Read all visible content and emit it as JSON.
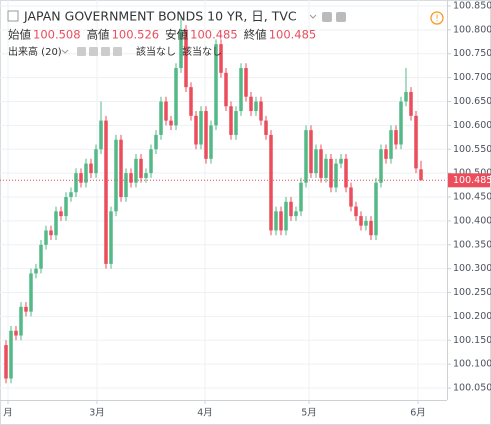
{
  "header": {
    "title": "JAPAN GOVERNMENT BONDS 10 YR, 日, TVC",
    "ohlc": [
      {
        "label": "始値",
        "value": "100.508"
      },
      {
        "label": "高値",
        "value": "100.526"
      },
      {
        "label": "安値",
        "value": "100.485"
      },
      {
        "label": "終値",
        "value": "100.485"
      }
    ],
    "volume": "出来高 (20)",
    "volume_values": [
      "該当なし",
      "該当なし"
    ]
  },
  "chart_data": {
    "type": "candlestick",
    "up_color": "#53b987",
    "down_color": "#eb4d5c",
    "grid": true,
    "ylim": [
      100.025,
      100.8625
    ],
    "yticks": [
      {
        "value": 100.05,
        "label": "100.050"
      },
      {
        "value": 100.1,
        "label": "100.100"
      },
      {
        "value": 100.15,
        "label": "100.150"
      },
      {
        "value": 100.2,
        "label": "100.200"
      },
      {
        "value": 100.25,
        "label": "100.250"
      },
      {
        "value": 100.3,
        "label": "100.300"
      },
      {
        "value": 100.35,
        "label": "100.350"
      },
      {
        "value": 100.4,
        "label": "100.400"
      },
      {
        "value": 100.45,
        "label": "100.450"
      },
      {
        "value": 100.5,
        "label": "100.500"
      },
      {
        "value": 100.55,
        "label": "100.550"
      },
      {
        "value": 100.6,
        "label": "100.600"
      },
      {
        "value": 100.65,
        "label": "100.650"
      },
      {
        "value": 100.7,
        "label": "100.700"
      },
      {
        "value": 100.75,
        "label": "100.750"
      },
      {
        "value": 100.8,
        "label": "100.800"
      },
      {
        "value": 100.85,
        "label": "100.850"
      }
    ],
    "xlim": [
      -1.2,
      88.2
    ],
    "xticks": [
      {
        "value": 0.4,
        "label": "月"
      },
      {
        "value": 18.2,
        "label": "3月"
      },
      {
        "value": 39.8,
        "label": "4月"
      },
      {
        "value": 60.6,
        "label": "5月"
      },
      {
        "value": 82.4,
        "label": "6月"
      }
    ],
    "last_price": {
      "value": 100.485,
      "label": "100.485"
    },
    "open": [
      100.14,
      100.07,
      100.17,
      100.16,
      100.22,
      100.21,
      100.29,
      100.3,
      100.35,
      100.38,
      100.37,
      100.42,
      100.41,
      100.45,
      100.46,
      100.5,
      100.48,
      100.52,
      100.5,
      100.55,
      100.61,
      100.31,
      100.42,
      100.57,
      100.45,
      100.5,
      100.48,
      100.53,
      100.49,
      100.5,
      100.55,
      100.58,
      100.65,
      100.61,
      100.6,
      100.72,
      100.8,
      100.68,
      100.62,
      100.56,
      100.63,
      100.53,
      100.6,
      100.77,
      100.71,
      100.64,
      100.58,
      100.63,
      100.72,
      100.66,
      100.63,
      100.65,
      100.61,
      100.58,
      100.38,
      100.42,
      100.38,
      100.44,
      100.41,
      100.42,
      100.48,
      100.59,
      100.5,
      100.55,
      100.49,
      100.53,
      100.47,
      100.52,
      100.53,
      100.47,
      100.43,
      100.41,
      100.39,
      100.4,
      100.37,
      100.48,
      100.55,
      100.53,
      100.59,
      100.56,
      100.65,
      100.67,
      100.62,
      100.508
    ],
    "high": [
      100.15,
      100.18,
      100.18,
      100.23,
      100.23,
      100.3,
      100.31,
      100.36,
      100.39,
      100.39,
      100.43,
      100.43,
      100.46,
      100.47,
      100.51,
      100.51,
      100.53,
      100.53,
      100.56,
      100.65,
      100.62,
      100.43,
      100.58,
      100.58,
      100.51,
      100.51,
      100.54,
      100.54,
      100.51,
      100.56,
      100.59,
      100.66,
      100.66,
      100.62,
      100.73,
      100.83,
      100.81,
      100.69,
      100.63,
      100.64,
      100.64,
      100.61,
      100.78,
      100.78,
      100.72,
      100.65,
      100.64,
      100.73,
      100.73,
      100.67,
      100.66,
      100.66,
      100.62,
      100.59,
      100.43,
      100.43,
      100.45,
      100.45,
      100.43,
      100.49,
      100.6,
      100.6,
      100.56,
      100.56,
      100.54,
      100.54,
      100.53,
      100.54,
      100.54,
      100.48,
      100.44,
      100.42,
      100.41,
      100.41,
      100.49,
      100.56,
      100.56,
      100.6,
      100.6,
      100.66,
      100.72,
      100.68,
      100.63,
      100.526
    ],
    "low": [
      100.06,
      100.06,
      100.15,
      100.15,
      100.2,
      100.2,
      100.28,
      100.29,
      100.34,
      100.36,
      100.36,
      100.4,
      100.4,
      100.44,
      100.45,
      100.47,
      100.47,
      100.49,
      100.49,
      100.54,
      100.3,
      100.3,
      100.41,
      100.44,
      100.44,
      100.47,
      100.47,
      100.48,
      100.48,
      100.49,
      100.54,
      100.57,
      100.6,
      100.59,
      100.59,
      100.71,
      100.67,
      100.61,
      100.55,
      100.55,
      100.52,
      100.52,
      100.59,
      100.7,
      100.63,
      100.57,
      100.57,
      100.62,
      100.65,
      100.62,
      100.62,
      100.6,
      100.57,
      100.37,
      100.37,
      100.37,
      100.37,
      100.4,
      100.4,
      100.41,
      100.47,
      100.49,
      100.49,
      100.48,
      100.48,
      100.46,
      100.46,
      100.51,
      100.46,
      100.42,
      100.4,
      100.38,
      100.38,
      100.36,
      100.36,
      100.47,
      100.52,
      100.52,
      100.55,
      100.55,
      100.64,
      100.61,
      100.5,
      100.485
    ],
    "close": [
      100.07,
      100.17,
      100.16,
      100.22,
      100.21,
      100.29,
      100.3,
      100.35,
      100.38,
      100.37,
      100.42,
      100.41,
      100.45,
      100.46,
      100.5,
      100.48,
      100.52,
      100.5,
      100.55,
      100.61,
      100.31,
      100.42,
      100.57,
      100.45,
      100.5,
      100.48,
      100.53,
      100.49,
      100.5,
      100.55,
      100.58,
      100.65,
      100.61,
      100.6,
      100.72,
      100.8,
      100.68,
      100.62,
      100.56,
      100.63,
      100.53,
      100.6,
      100.77,
      100.71,
      100.64,
      100.58,
      100.63,
      100.72,
      100.66,
      100.63,
      100.65,
      100.61,
      100.58,
      100.38,
      100.42,
      100.38,
      100.44,
      100.41,
      100.42,
      100.48,
      100.59,
      100.5,
      100.55,
      100.49,
      100.53,
      100.47,
      100.52,
      100.53,
      100.47,
      100.43,
      100.41,
      100.39,
      100.4,
      100.37,
      100.48,
      100.55,
      100.53,
      100.59,
      100.56,
      100.65,
      100.67,
      100.62,
      100.51,
      100.485
    ]
  }
}
